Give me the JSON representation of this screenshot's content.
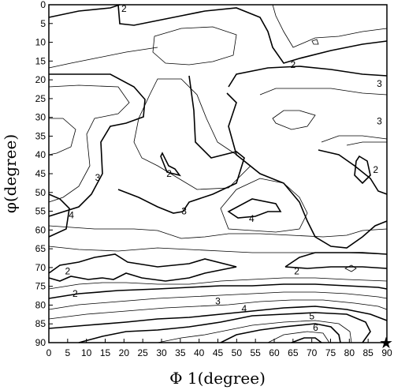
{
  "chart_data": {
    "type": "contour",
    "title": "",
    "xlabel": "Φ 1(degree)",
    "ylabel": "φ(degree)",
    "xlim": [
      0,
      90
    ],
    "ylim": [
      0,
      90
    ],
    "y_inverted": true,
    "x_ticks": [
      0,
      5,
      10,
      15,
      20,
      25,
      30,
      35,
      40,
      45,
      50,
      55,
      60,
      65,
      70,
      75,
      80,
      85,
      90
    ],
    "y_ticks": [
      0,
      5,
      10,
      15,
      20,
      25,
      30,
      35,
      40,
      45,
      50,
      55,
      60,
      65,
      70,
      75,
      80,
      85,
      90
    ],
    "grid": false,
    "contour_levels": [
      1.5,
      2,
      2.5,
      3,
      3.5,
      4,
      4.5,
      5,
      5.5,
      6
    ],
    "contour_labels": [
      {
        "text": "2",
        "x": 20,
        "y": 1
      },
      {
        "text": "2",
        "x": 65,
        "y": 16
      },
      {
        "text": "3",
        "x": 88,
        "y": 21
      },
      {
        "text": "3",
        "x": 88,
        "y": 31
      },
      {
        "text": "2",
        "x": 87,
        "y": 44
      },
      {
        "text": "3",
        "x": 13,
        "y": 46
      },
      {
        "text": "2",
        "x": 32,
        "y": 45
      },
      {
        "text": "3",
        "x": 36,
        "y": 55
      },
      {
        "text": "4",
        "x": 6,
        "y": 56
      },
      {
        "text": "4",
        "x": 54,
        "y": 57
      },
      {
        "text": "2",
        "x": 5,
        "y": 71
      },
      {
        "text": "2",
        "x": 66,
        "y": 71
      },
      {
        "text": "2",
        "x": 7,
        "y": 77
      },
      {
        "text": "3",
        "x": 45,
        "y": 79
      },
      {
        "text": "4",
        "x": 52,
        "y": 81
      },
      {
        "text": "5",
        "x": 70,
        "y": 83
      },
      {
        "text": "6",
        "x": 71,
        "y": 86
      }
    ],
    "marker": {
      "symbol": "★",
      "x": 90,
      "y": 90
    }
  }
}
